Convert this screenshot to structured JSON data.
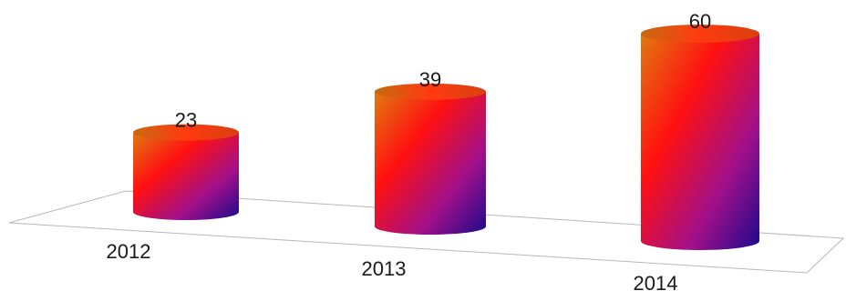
{
  "chart_data": {
    "type": "bar",
    "style": "3d-cylinder",
    "categories": [
      "2012",
      "2013",
      "2014"
    ],
    "values": [
      23,
      39,
      60
    ],
    "data_labels": [
      "23",
      "39",
      "60"
    ],
    "title": "",
    "xlabel": "",
    "ylabel": "",
    "ylim": [
      0,
      60
    ],
    "grid": false,
    "legend": "none",
    "colors": {
      "gradient_top": "#e07a10",
      "gradient_mid": "#ff1010",
      "gradient_low": "#a0108a",
      "gradient_end": "#1a0a8a",
      "floor_line": "#b8b8b8"
    }
  }
}
